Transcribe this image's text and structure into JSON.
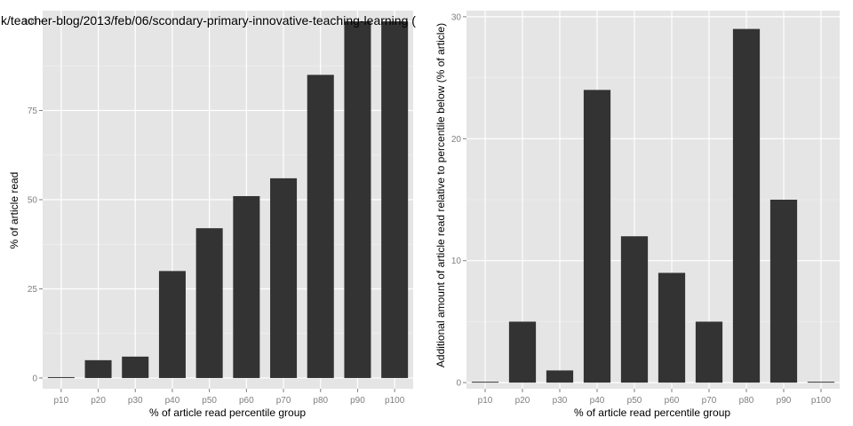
{
  "colors": {
    "panel_bg": "#e5e5e5",
    "grid_major": "#ffffff",
    "bar": "#333333",
    "tick_text": "#7f7f7f"
  },
  "chart_data": [
    {
      "type": "bar",
      "title": "k/teacher-blog/2013/feb/06/scondary-primary-innovative-teaching-learning (",
      "xlabel": "% of article read percentile group",
      "ylabel": "% of article read",
      "categories": [
        "p10",
        "p20",
        "p30",
        "p40",
        "p50",
        "p60",
        "p70",
        "p80",
        "p90",
        "p100"
      ],
      "values": [
        0,
        5,
        6,
        30,
        42,
        51,
        56,
        85,
        100,
        100
      ],
      "ylim": [
        -3,
        103
      ],
      "yticks": [
        0,
        25,
        50,
        75,
        100
      ],
      "grid": true
    },
    {
      "type": "bar",
      "title": "",
      "xlabel": "% of article read percentile group",
      "ylabel": "Additional amount of article read relative to percentile below (% of article)",
      "categories": [
        "p10",
        "p20",
        "p30",
        "p40",
        "p50",
        "p60",
        "p70",
        "p80",
        "p90",
        "p100"
      ],
      "values": [
        0,
        5,
        1,
        24,
        12,
        9,
        5,
        29,
        15,
        0
      ],
      "ylim": [
        -0.5,
        30.5
      ],
      "yticks": [
        0,
        10,
        20,
        30
      ],
      "grid": true
    }
  ]
}
